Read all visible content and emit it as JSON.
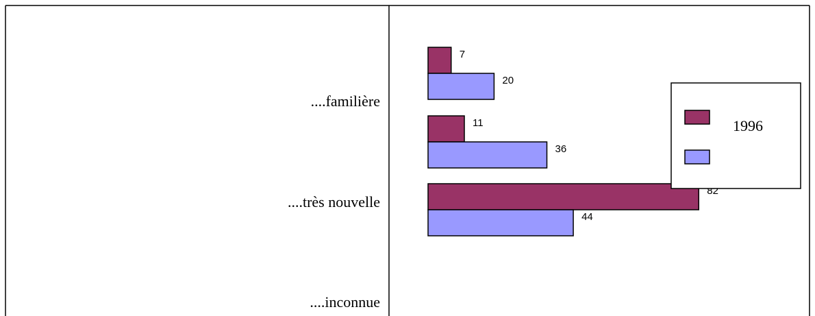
{
  "chart_data": {
    "type": "bar",
    "orientation": "horizontal",
    "categories": [
      "....familière",
      "....très nouvelle",
      "....inconnue"
    ],
    "series": [
      {
        "name": "1996",
        "color": "#993366",
        "values": [
          7,
          11,
          82
        ]
      },
      {
        "color": "#9999ff",
        "values": [
          20,
          36,
          44
        ]
      }
    ]
  }
}
